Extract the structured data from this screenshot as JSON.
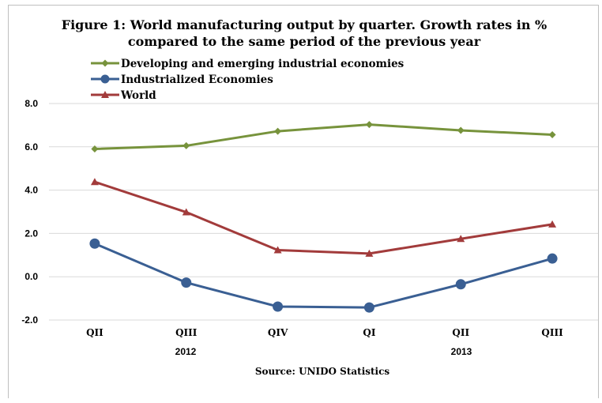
{
  "chart_data": {
    "type": "line",
    "title_line1": "Figure 1: World manufacturing output by quarter. Growth rates in %",
    "title_line2": "compared to the same period of the previous year",
    "categories": [
      "QII",
      "QIII",
      "QIV",
      "QI",
      "QII",
      "QIII"
    ],
    "year_labels": [
      "2012",
      "2013"
    ],
    "ylim": [
      -2.0,
      8.0
    ],
    "yticks": [
      "8.0",
      "6.0",
      "4.0",
      "2.0",
      "0.0",
      "-2.0"
    ],
    "grid": true,
    "legend_position": "top-left",
    "series": [
      {
        "name": "Developing and emerging industrial economies",
        "color": "#77933c",
        "marker": "diamond",
        "values": [
          5.9,
          6.05,
          6.72,
          7.03,
          6.76,
          6.56
        ]
      },
      {
        "name": "Industrialized Economies",
        "color": "#3a5f93",
        "marker": "circle",
        "values": [
          1.53,
          -0.27,
          -1.38,
          -1.42,
          -0.35,
          0.84
        ]
      },
      {
        "name": "World",
        "color": "#a23b3b",
        "marker": "triangle",
        "values": [
          4.38,
          2.98,
          1.23,
          1.07,
          1.75,
          2.42
        ]
      }
    ],
    "source": "Source: UNIDO Statistics"
  }
}
